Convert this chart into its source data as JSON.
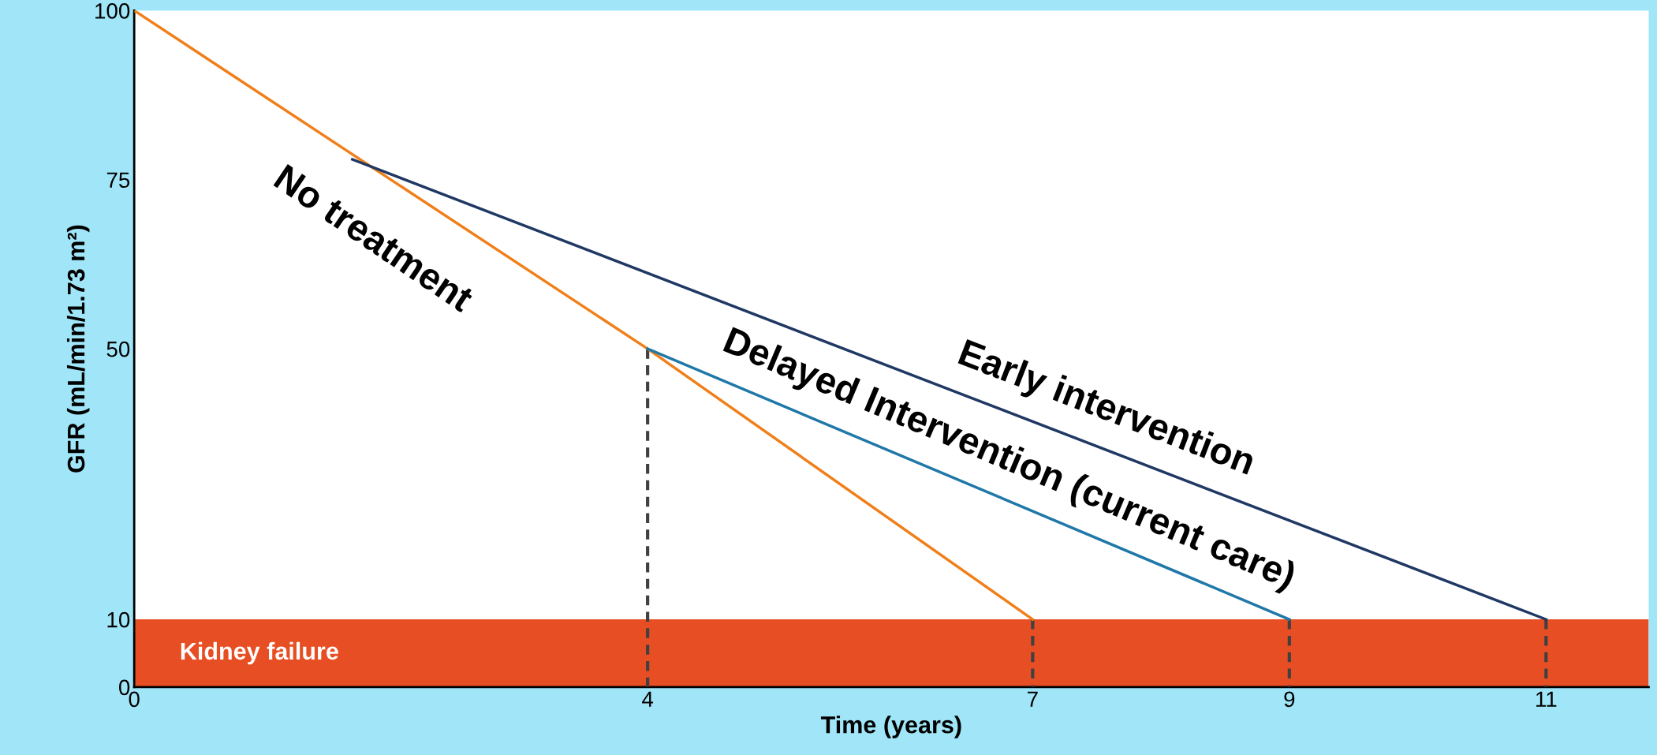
{
  "chart_data": {
    "type": "line",
    "xlabel": "Time (years)",
    "ylabel": "GFR (mL/min/1.73 m²)",
    "series": [
      {
        "name": "No treatment",
        "color": "#f07f1a",
        "x": [
          0,
          4,
          7
        ],
        "values": [
          100,
          50,
          10
        ]
      },
      {
        "name": "Early intervention",
        "color": "#1f3864",
        "x": [
          1.7,
          11
        ],
        "values": [
          78,
          10
        ]
      },
      {
        "name": "Delayed Intervention (current care)",
        "color": "#1f78a8",
        "x": [
          4,
          9
        ],
        "values": [
          50,
          10
        ]
      },
      {
        "color": "#404040",
        "line_style": "dashed",
        "x": [
          4,
          4
        ],
        "values": [
          0,
          50
        ]
      },
      {
        "color": "#404040",
        "line_style": "dashed",
        "x": [
          7,
          7
        ],
        "values": [
          0,
          10
        ]
      },
      {
        "color": "#404040",
        "line_style": "dashed",
        "x": [
          9,
          9
        ],
        "values": [
          0,
          10
        ]
      },
      {
        "color": "#404040",
        "line_style": "dashed",
        "x": [
          11,
          11
        ],
        "values": [
          0,
          10
        ]
      }
    ],
    "bands": [
      {
        "axis": "y",
        "from": 0,
        "to": 10,
        "label": "Kidney failure",
        "color": "#e84e23"
      }
    ],
    "xlim": [
      0,
      11.8
    ],
    "ylim": [
      0,
      100
    ],
    "xticks": [
      0,
      4,
      7,
      9,
      11
    ],
    "yticks": [
      0,
      10,
      50,
      75,
      100
    ],
    "grid": false,
    "legend": false,
    "marker": "none",
    "line_style": "solid"
  }
}
